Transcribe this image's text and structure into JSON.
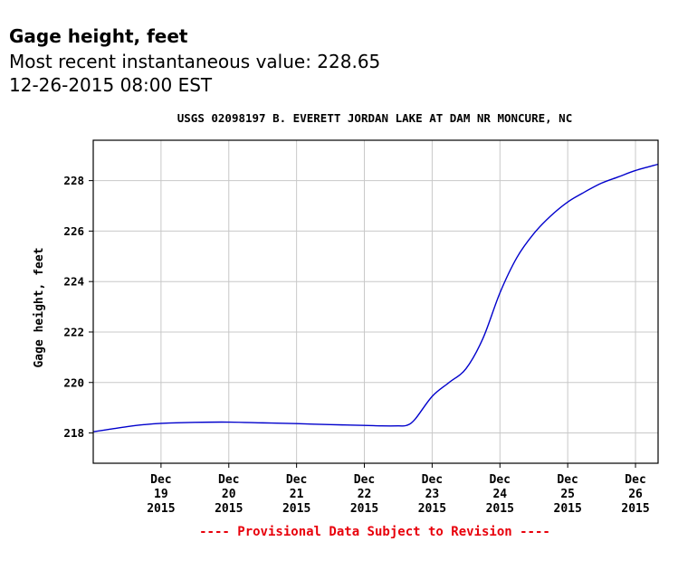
{
  "header": {
    "title": "Gage height, feet",
    "recent_value": "Most recent instantaneous value: 228.65",
    "timestamp": "12-26-2015  08:00 EST"
  },
  "chart_data": {
    "type": "line",
    "title": "USGS 02098197  B. EVERETT JORDAN LAKE AT DAM NR MONCURE, NC",
    "xlabel": "",
    "ylabel": "Gage height, feet",
    "ylim": [
      216.8,
      229.6
    ],
    "xlim": [
      "2015-12-18 00:00",
      "2015-12-26 08:00"
    ],
    "grid": true,
    "line_color": "#0000cc",
    "yticks": [
      218,
      220,
      222,
      224,
      226,
      228
    ],
    "xticks": [
      {
        "x": "2015-12-19",
        "label": [
          "Dec",
          "19",
          "2015"
        ]
      },
      {
        "x": "2015-12-20",
        "label": [
          "Dec",
          "20",
          "2015"
        ]
      },
      {
        "x": "2015-12-21",
        "label": [
          "Dec",
          "21",
          "2015"
        ]
      },
      {
        "x": "2015-12-22",
        "label": [
          "Dec",
          "22",
          "2015"
        ]
      },
      {
        "x": "2015-12-23",
        "label": [
          "Dec",
          "23",
          "2015"
        ]
      },
      {
        "x": "2015-12-24",
        "label": [
          "Dec",
          "24",
          "2015"
        ]
      },
      {
        "x": "2015-12-25",
        "label": [
          "Dec",
          "25",
          "2015"
        ]
      },
      {
        "x": "2015-12-26",
        "label": [
          "Dec",
          "26",
          "2015"
        ]
      }
    ],
    "series": [
      {
        "x": [
          "2015-12-18 00:00",
          "2015-12-18 06:00",
          "2015-12-18 12:00",
          "2015-12-18 18:00",
          "2015-12-19 00:00",
          "2015-12-19 12:00",
          "2015-12-20 00:00",
          "2015-12-20 12:00",
          "2015-12-21 00:00",
          "2015-12-21 12:00",
          "2015-12-22 00:00",
          "2015-12-22 06:00",
          "2015-12-22 12:00",
          "2015-12-22 15:00",
          "2015-12-22 18:00",
          "2015-12-23 00:00",
          "2015-12-23 06:00",
          "2015-12-23 12:00",
          "2015-12-23 18:00",
          "2015-12-24 00:00",
          "2015-12-24 06:00",
          "2015-12-24 12:00",
          "2015-12-24 18:00",
          "2015-12-25 00:00",
          "2015-12-25 06:00",
          "2015-12-25 12:00",
          "2015-12-25 18:00",
          "2015-12-26 00:00",
          "2015-12-26 08:00"
        ],
        "y": [
          218.05,
          218.15,
          218.25,
          218.33,
          218.38,
          218.42,
          218.43,
          218.4,
          218.37,
          218.33,
          218.3,
          218.28,
          218.28,
          218.3,
          218.55,
          219.45,
          220.0,
          220.55,
          221.75,
          223.55,
          224.95,
          225.9,
          226.6,
          227.15,
          227.55,
          227.9,
          228.15,
          228.4,
          228.65
        ]
      }
    ],
    "footnote": "---- Provisional Data Subject to Revision ----",
    "footnote_color": "#e8000b"
  }
}
